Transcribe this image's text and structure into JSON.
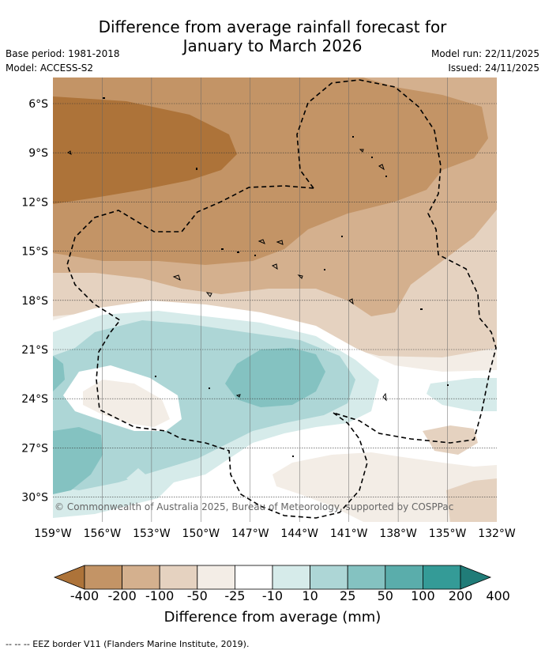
{
  "title": {
    "line1": "Difference from average rainfall forecast for",
    "line2": "January to March 2026"
  },
  "meta": {
    "base_period": "Base period: 1981-2018",
    "model": "Model: ACCESS-S2",
    "model_run": "Model run: 22/11/2025",
    "issued": "Issued: 24/11/2025"
  },
  "axes": {
    "lat_labels": [
      "6°S",
      "9°S",
      "12°S",
      "15°S",
      "18°S",
      "21°S",
      "24°S",
      "27°S",
      "30°S"
    ],
    "lon_labels": [
      "159°W",
      "156°W",
      "153°W",
      "150°W",
      "147°W",
      "144°W",
      "141°W",
      "138°W",
      "135°W",
      "132°W"
    ]
  },
  "copyright": "© Commonwealth of Australia 2025, Bureau of Meteorology, supported by COSPPac",
  "colorbar": {
    "title": "Difference from average (mm)",
    "tick_labels": [
      "-400",
      "-200",
      "-100",
      "-50",
      "-25",
      "-10",
      "10",
      "25",
      "50",
      "100",
      "200",
      "400"
    ],
    "colors": {
      "c0": "#ad7339",
      "c1": "#c39466",
      "c2": "#d4b08e",
      "c3": "#e5d2c0",
      "c4": "#f3ede6",
      "c5": "#ffffff",
      "c6": "#d6ebea",
      "c7": "#add6d6",
      "c8": "#84c2c1",
      "c9": "#5aadab",
      "c10": "#349b97",
      "c11": "#207c78"
    }
  },
  "footnote": "--  --  -- EEZ border V11 (Flanders Marine Institute, 2019)."
}
